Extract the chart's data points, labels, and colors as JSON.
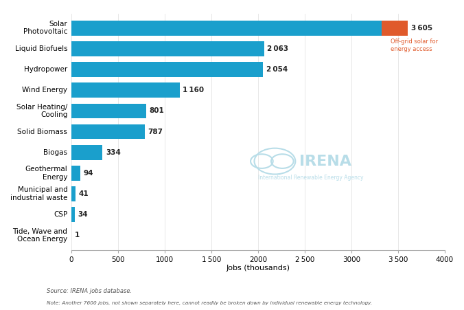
{
  "categories": [
    "Solar\nPhotovoltaic",
    "Liquid Biofuels",
    "Hydropower",
    "Wind Energy",
    "Solar Heating/\nCooling",
    "Solid Biomass",
    "Biogas",
    "Geothermal\nEnergy",
    "Municipal and\nindustrial waste",
    "CSP",
    "Tide, Wave and\nOcean Energy"
  ],
  "values": [
    3605,
    2063,
    2054,
    1160,
    801,
    787,
    334,
    94,
    41,
    34,
    1
  ],
  "offgrid_value": 280,
  "bar_color": "#1a9fcc",
  "offgrid_color": "#e05a2b",
  "text_color": "#333333",
  "bg_color": "#ffffff",
  "xlabel": "Jobs (thousands)",
  "xlim": [
    0,
    4000
  ],
  "xticks": [
    0,
    500,
    1000,
    1500,
    2000,
    2500,
    3000,
    3500,
    4000
  ],
  "irena_color": "#b8dde8",
  "source_text": "Source: IRENA jobs database.",
  "note_text": "Note: Another 7600 jobs, not shown separately here, cannot readily be broken down by individual renewable energy technology.",
  "offgrid_label": "Off-grid solar for\nenergy access",
  "bar_height": 0.72,
  "person_char": "⧗",
  "figsize": [
    6.76,
    4.51
  ],
  "dpi": 100
}
